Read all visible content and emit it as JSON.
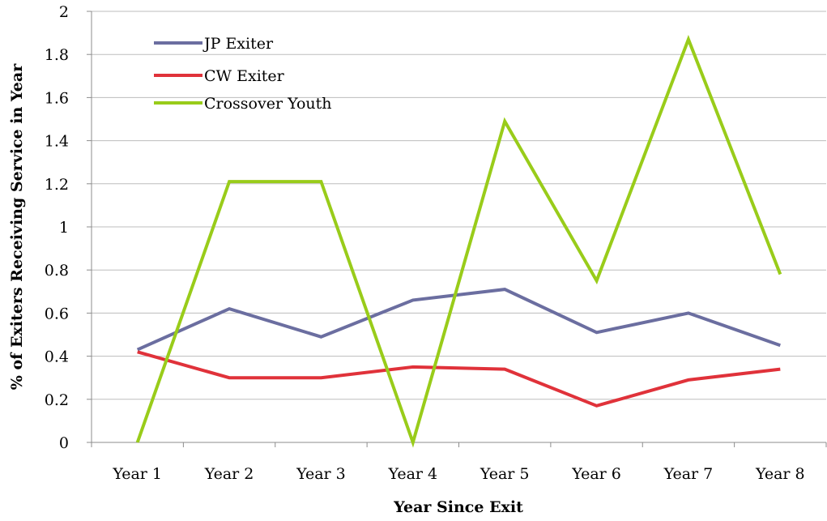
{
  "chart_data": {
    "type": "line",
    "title": "",
    "xlabel": "Year Since Exit",
    "ylabel": "% of Exiters Receiving Service in Year",
    "categories": [
      "Year 1",
      "Year 2",
      "Year 3",
      "Year 4",
      "Year 5",
      "Year 6",
      "Year 7",
      "Year 8"
    ],
    "ylim": [
      0,
      2
    ],
    "yticks": [
      "0",
      "0.2",
      "0.4",
      "0.6",
      "0.8",
      "1",
      "1.2",
      "1.4",
      "1.6",
      "1.8",
      "2"
    ],
    "grid": "horizontal",
    "legend_position": "top-left",
    "series": [
      {
        "name": "JP Exiter",
        "color": "#6b6ea0",
        "values": [
          0.43,
          0.62,
          0.49,
          0.66,
          0.71,
          0.51,
          0.6,
          0.45
        ]
      },
      {
        "name": "CW Exiter",
        "color": "#e0323a",
        "values": [
          0.42,
          0.3,
          0.3,
          0.35,
          0.34,
          0.17,
          0.29,
          0.34
        ]
      },
      {
        "name": "Crossover Youth",
        "color": "#99cc1a",
        "values": [
          0.0,
          1.21,
          1.21,
          0.0,
          1.49,
          0.75,
          1.87,
          0.78
        ]
      }
    ]
  }
}
